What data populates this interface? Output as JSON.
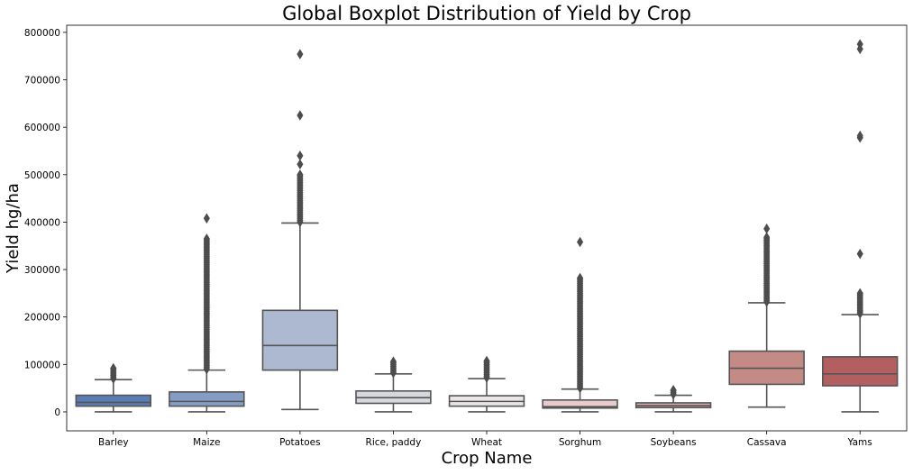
{
  "chart_data": {
    "type": "boxplot",
    "title": "Global Boxplot Distribution of Yield by Crop",
    "xlabel": "Crop Name",
    "ylabel": "Yield hg/ha",
    "ylim": [
      -40000,
      815000
    ],
    "yticks": [
      0,
      100000,
      200000,
      300000,
      400000,
      500000,
      600000,
      700000,
      800000
    ],
    "ytick_labels": [
      "0",
      "100000",
      "200000",
      "300000",
      "400000",
      "500000",
      "600000",
      "700000",
      "800000"
    ],
    "grid": false,
    "legend": "none",
    "categories": [
      "Barley",
      "Maize",
      "Potatoes",
      "Rice, paddy",
      "Wheat",
      "Sorghum",
      "Soybeans",
      "Cassava",
      "Yams"
    ],
    "colors": [
      "#5b7db5",
      "#859dc4",
      "#adb9d0",
      "#d6d8de",
      "#ebe6e6",
      "#e6cccc",
      "#d9aaa7",
      "#c48a86",
      "#b35f5f"
    ],
    "boxes": [
      {
        "min": 0,
        "q1": 12000,
        "median": 20000,
        "q3": 35000,
        "max": 68000,
        "outliers_from": 70000,
        "outliers_to": 92000,
        "extra_outliers": []
      },
      {
        "min": 0,
        "q1": 12000,
        "median": 22000,
        "q3": 42000,
        "max": 88000,
        "outliers_from": 90000,
        "outliers_to": 365000,
        "extra_outliers": [
          408000
        ]
      },
      {
        "min": 5000,
        "q1": 88000,
        "median": 140000,
        "q3": 214000,
        "max": 398000,
        "outliers_from": 400000,
        "outliers_to": 500000,
        "extra_outliers": [
          522000,
          540000,
          625000,
          754000
        ]
      },
      {
        "min": 0,
        "q1": 18000,
        "median": 30000,
        "q3": 44000,
        "max": 80000,
        "outliers_from": 82000,
        "outliers_to": 106000,
        "extra_outliers": []
      },
      {
        "min": 0,
        "q1": 12000,
        "median": 22000,
        "q3": 34000,
        "max": 70000,
        "outliers_from": 72000,
        "outliers_to": 107000,
        "extra_outliers": []
      },
      {
        "min": 0,
        "q1": 8000,
        "median": 11000,
        "q3": 25000,
        "max": 48000,
        "outliers_from": 50000,
        "outliers_to": 282000,
        "extra_outliers": [
          358000
        ]
      },
      {
        "min": 0,
        "q1": 9000,
        "median": 13000,
        "q3": 19000,
        "max": 35000,
        "outliers_from": 37000,
        "outliers_to": 46000,
        "extra_outliers": []
      },
      {
        "min": 10000,
        "q1": 58000,
        "median": 92000,
        "q3": 128000,
        "max": 230000,
        "outliers_from": 232000,
        "outliers_to": 368000,
        "extra_outliers": [
          386000
        ]
      },
      {
        "min": 0,
        "q1": 55000,
        "median": 80000,
        "q3": 116000,
        "max": 205000,
        "outliers_from": 207000,
        "outliers_to": 250000,
        "extra_outliers": [
          333000,
          578000,
          582000,
          765000,
          775000
        ]
      }
    ]
  }
}
